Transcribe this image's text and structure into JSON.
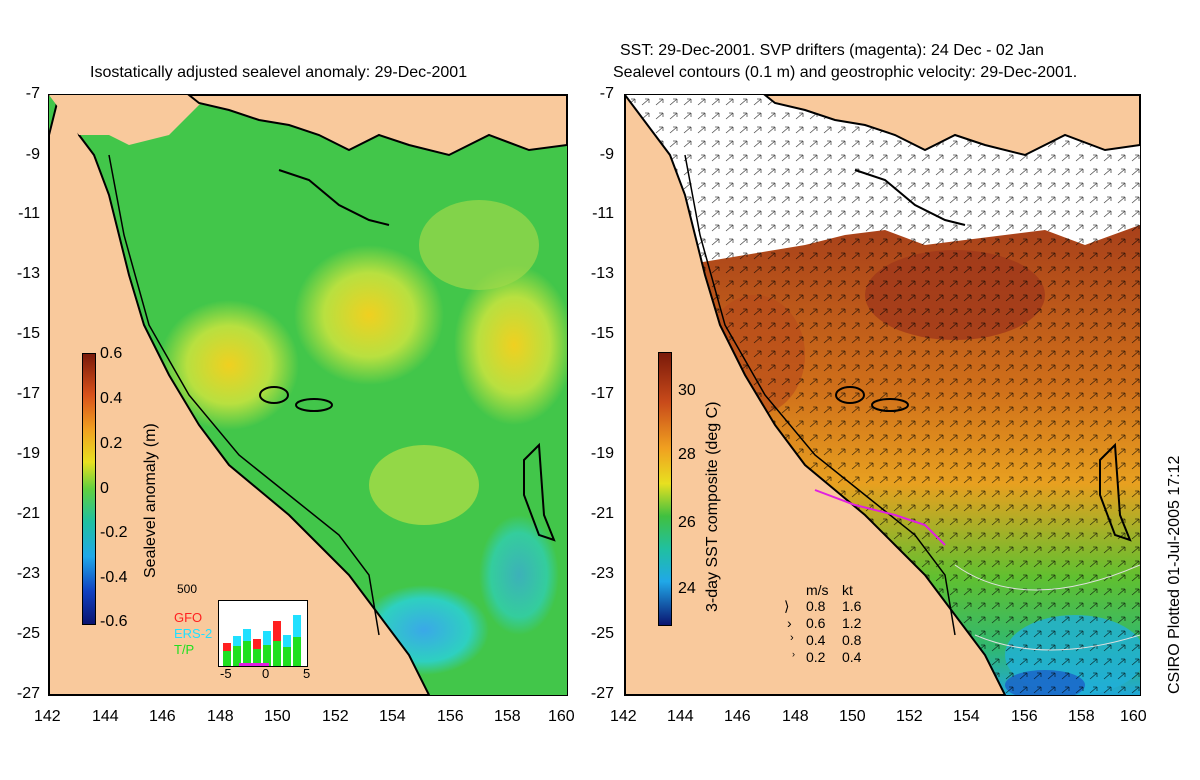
{
  "left_panel": {
    "title": "Isostatically adjusted sealevel anomaly: 29-Dec-2001",
    "colorbar_label": "Sealevel anomaly (m)",
    "colorbar_ticks": [
      "0.6",
      "0.4",
      "0.2",
      "0",
      "-0.2",
      "-0.4",
      "-0.6"
    ],
    "inset": {
      "y_label": "500",
      "legend": [
        {
          "label": "GFO",
          "color": "#ff2020"
        },
        {
          "label": "ERS-2",
          "color": "#20e0ff"
        },
        {
          "label": "T/P",
          "color": "#20e020"
        }
      ],
      "x_ticks": [
        "-5",
        "0",
        "5"
      ]
    }
  },
  "right_panel": {
    "title_line1": "SST: 29-Dec-2001. SVP drifters (magenta): 24 Dec - 02 Jan",
    "title_line2": "Sealevel contours (0.1 m) and geostrophic velocity: 29-Dec-2001.",
    "colorbar_label": "3-day SST composite (deg C)",
    "colorbar_ticks": [
      "30",
      "28",
      "26",
      "24"
    ],
    "speed_legend": {
      "header_ms": "m/s",
      "header_kt": "kt",
      "rows": [
        {
          "ms": "0.8",
          "kt": "1.6"
        },
        {
          "ms": "0.6",
          "kt": "1.2"
        },
        {
          "ms": "0.4",
          "kt": "0.8"
        },
        {
          "ms": "0.2",
          "kt": "0.4"
        }
      ]
    }
  },
  "axes": {
    "lat_ticks": [
      "-7",
      "-9",
      "-11",
      "-13",
      "-15",
      "-17",
      "-19",
      "-21",
      "-23",
      "-25",
      "-27"
    ],
    "lon_ticks": [
      "142",
      "144",
      "146",
      "148",
      "150",
      "152",
      "154",
      "156",
      "158",
      "160"
    ]
  },
  "credit": "CSIRO Plotted 01-Jul-2005 17:12",
  "colors": {
    "land": "#f9c99c",
    "ocean_mid": "#3ec34a",
    "warm": "#c8501a",
    "cloud": "#ffffff"
  }
}
